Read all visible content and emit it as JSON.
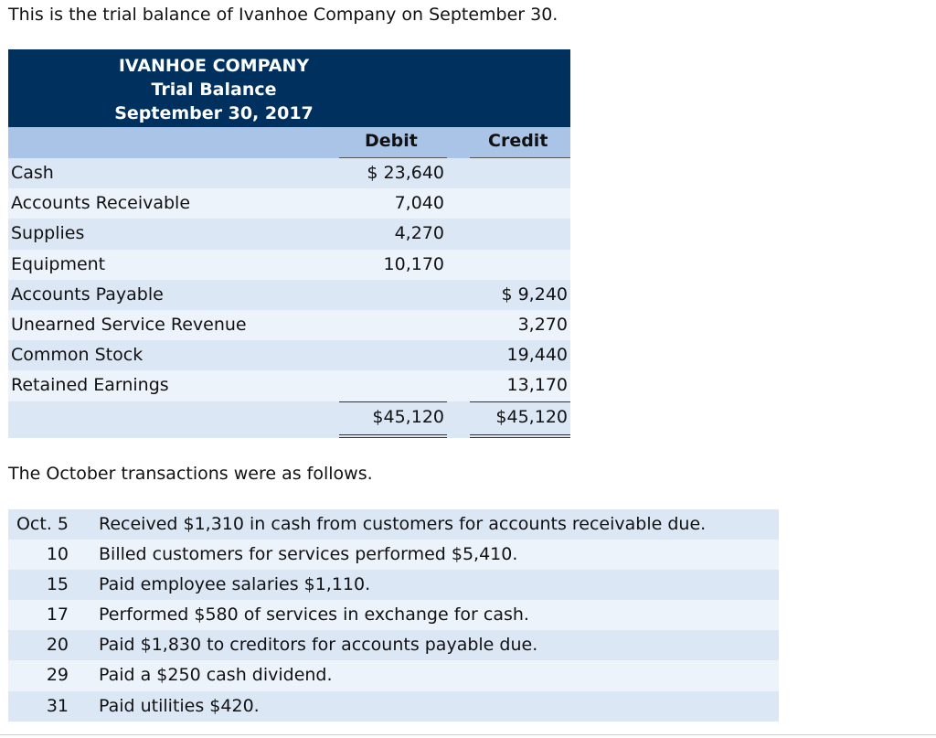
{
  "intro": "This is the trial balance of Ivanhoe Company on September 30.",
  "trial_balance": {
    "company": "IVANHOE COMPANY",
    "statement": "Trial Balance",
    "date": "September 30, 2017",
    "col_debit": "Debit",
    "col_credit": "Credit",
    "rows": [
      {
        "account": "Cash",
        "debit": "$ 23,640",
        "credit": ""
      },
      {
        "account": "Accounts Receivable",
        "debit": "7,040",
        "credit": ""
      },
      {
        "account": "Supplies",
        "debit": "4,270",
        "credit": ""
      },
      {
        "account": "Equipment",
        "debit": "10,170",
        "credit": ""
      },
      {
        "account": "Accounts Payable",
        "debit": "",
        "credit": "$ 9,240"
      },
      {
        "account": "Unearned Service Revenue",
        "debit": "",
        "credit": "3,270"
      },
      {
        "account": "Common Stock",
        "debit": "",
        "credit": "19,440"
      },
      {
        "account": "Retained Earnings",
        "debit": "",
        "credit": "13,170"
      }
    ],
    "total_debit": "$45,120",
    "total_credit": "$45,120"
  },
  "transactions_intro": "The October transactions were as follows.",
  "transactions": [
    {
      "date": "Oct. 5",
      "text": "Received $1,310 in cash from customers for accounts receivable due."
    },
    {
      "date": "10",
      "text": "Billed customers for services performed $5,410."
    },
    {
      "date": "15",
      "text": "Paid employee salaries $1,110."
    },
    {
      "date": "17",
      "text": "Performed $580 of services in exchange for cash."
    },
    {
      "date": "20",
      "text": "Paid $1,830 to creditors for accounts payable due."
    },
    {
      "date": "29",
      "text": "Paid a $250 cash dividend."
    },
    {
      "date": "31",
      "text": "Paid utilities $420."
    }
  ]
}
